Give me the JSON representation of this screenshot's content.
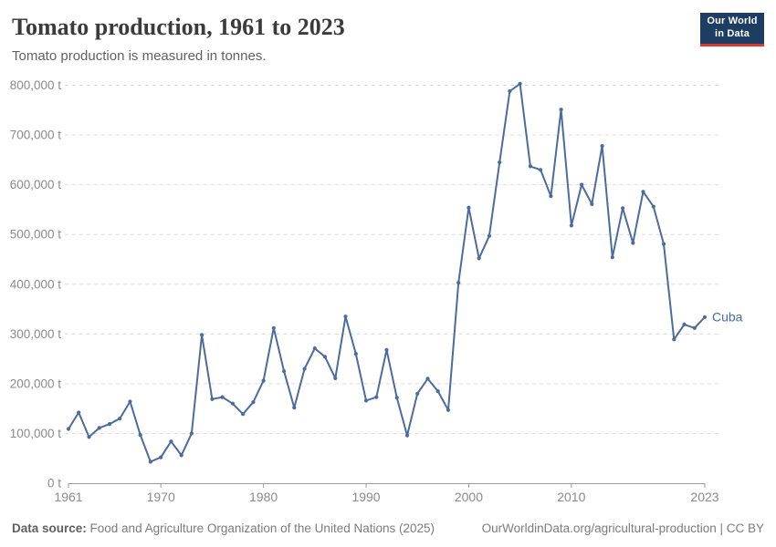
{
  "header": {
    "title": "Tomato production, 1961 to 2023",
    "subtitle": "Tomato production is measured in tonnes."
  },
  "logo": {
    "line1": "Our World",
    "line2": "in Data",
    "bg_color": "#1d3d63",
    "accent_color": "#d73c34"
  },
  "chart_data": {
    "type": "line",
    "title": "Tomato production, 1961 to 2023",
    "unit": "t",
    "grid": true,
    "legend_position": "end-of-line-label",
    "xlabel": "",
    "ylabel": "",
    "ylim": [
      0,
      800000
    ],
    "y_ticks": [
      0,
      100000,
      200000,
      300000,
      400000,
      500000,
      600000,
      700000,
      800000
    ],
    "x_ticks": [
      1961,
      1970,
      1980,
      1990,
      2000,
      2010,
      2023
    ],
    "x": [
      1961,
      1962,
      1963,
      1964,
      1965,
      1966,
      1967,
      1968,
      1969,
      1970,
      1971,
      1972,
      1973,
      1974,
      1975,
      1976,
      1977,
      1978,
      1979,
      1980,
      1981,
      1982,
      1983,
      1984,
      1985,
      1986,
      1987,
      1988,
      1989,
      1990,
      1991,
      1992,
      1993,
      1994,
      1995,
      1996,
      1997,
      1998,
      1999,
      2000,
      2001,
      2002,
      2003,
      2004,
      2005,
      2006,
      2007,
      2008,
      2009,
      2010,
      2011,
      2012,
      2013,
      2014,
      2015,
      2016,
      2017,
      2018,
      2019,
      2020,
      2021,
      2022,
      2023
    ],
    "series": [
      {
        "name": "Cuba",
        "color": "#4C6B9E",
        "values": [
          109000,
          142000,
          93000,
          111000,
          119000,
          130000,
          164000,
          97000,
          43000,
          52000,
          84000,
          56000,
          100000,
          298000,
          169000,
          173000,
          160000,
          139000,
          163000,
          206000,
          312000,
          225000,
          152000,
          230000,
          271000,
          254000,
          211000,
          335000,
          260000,
          166000,
          173000,
          268000,
          172000,
          96000,
          180000,
          210000,
          185000,
          147000,
          403000,
          554000,
          452000,
          497000,
          645000,
          788000,
          803000,
          637000,
          630000,
          577000,
          751000,
          518000,
          600000,
          561000,
          678000,
          454000,
          553000,
          483000,
          586000,
          556000,
          481000,
          289000,
          319000,
          312000,
          334000
        ]
      }
    ]
  },
  "colors": {
    "line": "#4C6B9E",
    "grid": "#dcdcdc",
    "axis_line": "#9a9a9a",
    "axis_text": "#8b8b8b"
  },
  "footer": {
    "datasource_label": "Data source:",
    "datasource_text": " Food and Agriculture Organization of the United Nations (2025)",
    "link_text": "OurWorldinData.org/agricultural-production",
    "separator": " | ",
    "license_text": "CC BY"
  }
}
